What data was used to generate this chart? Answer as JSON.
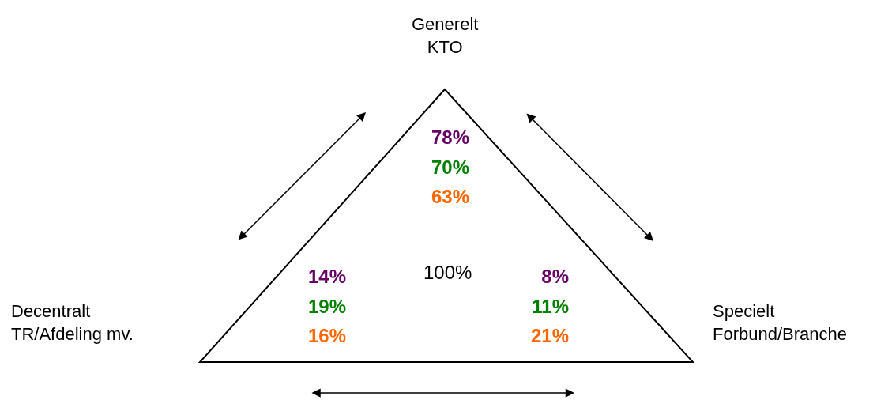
{
  "chart_data": {
    "type": "other",
    "categories": [
      "Generelt\nKTO",
      "Decentralt\nTR/Afdeling mv.",
      "Specielt\nForbund/Branche"
    ],
    "series": [
      {
        "color": "#660066",
        "values": [
          78,
          14,
          8
        ],
        "value_labels": [
          "78%",
          "14%",
          "8%"
        ]
      },
      {
        "color": "#008000",
        "values": [
          70,
          19,
          11
        ],
        "value_labels": [
          "70%",
          "19%",
          "11%"
        ]
      },
      {
        "color": "#ff6600",
        "values": [
          63,
          16,
          21
        ],
        "value_labels": [
          "63%",
          "16%",
          "21%"
        ]
      }
    ],
    "annotations": [
      "100%"
    ]
  }
}
